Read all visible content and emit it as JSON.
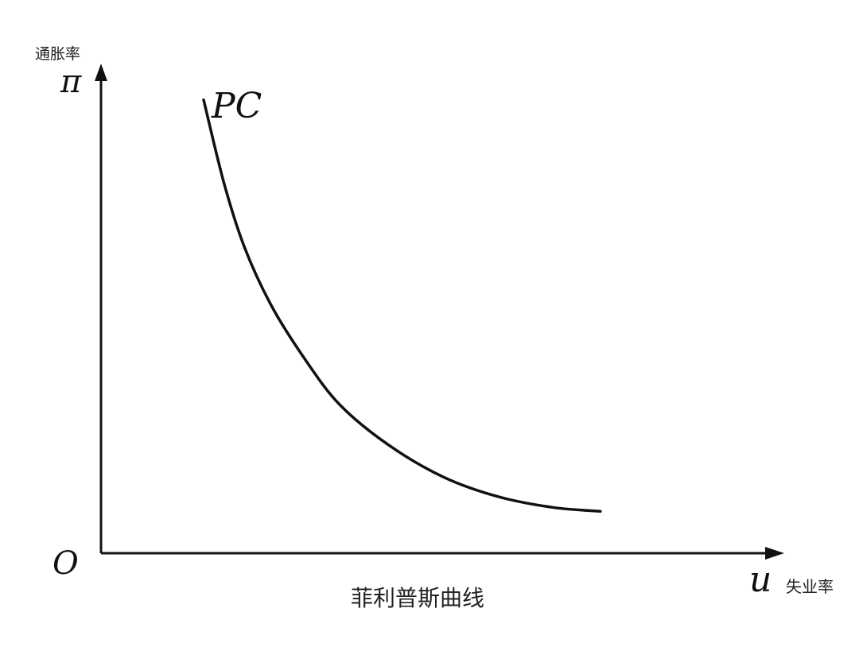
{
  "chart_data": {
    "type": "line",
    "title": "菲利普斯曲线",
    "y_axis": {
      "symbol": "π",
      "label": "通胀率"
    },
    "x_axis": {
      "symbol": "u",
      "label": "失业率"
    },
    "origin_label": "O",
    "grid": false,
    "series": [
      {
        "name": "PC",
        "points": [
          [
            0.15,
            0.92
          ],
          [
            0.18,
            0.75
          ],
          [
            0.21,
            0.62
          ],
          [
            0.25,
            0.5
          ],
          [
            0.3,
            0.39
          ],
          [
            0.35,
            0.3
          ],
          [
            0.42,
            0.22
          ],
          [
            0.5,
            0.155
          ],
          [
            0.58,
            0.115
          ],
          [
            0.66,
            0.093
          ],
          [
            0.73,
            0.085
          ]
        ]
      }
    ]
  }
}
